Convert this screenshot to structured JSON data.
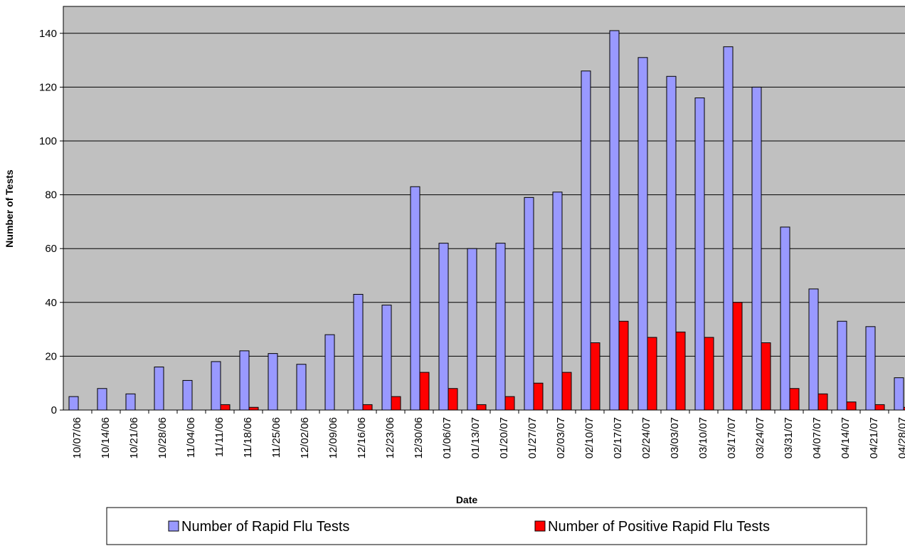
{
  "chart_data": {
    "type": "bar",
    "categories": [
      "10/07/06",
      "10/14/06",
      "10/21/06",
      "10/28/06",
      "11/04/06",
      "11/11/06",
      "11/18/06",
      "11/25/06",
      "12/02/06",
      "12/09/06",
      "12/16/06",
      "12/23/06",
      "12/30/06",
      "01/06/07",
      "01/13/07",
      "01/20/07",
      "01/27/07",
      "02/03/07",
      "02/10/07",
      "02/17/07",
      "02/24/07",
      "03/03/07",
      "03/10/07",
      "03/17/07",
      "03/24/07",
      "03/31/07",
      "04/07/07",
      "04/14/07",
      "04/21/07",
      "04/28/07"
    ],
    "series": [
      {
        "name": "Number of Rapid Flu Tests",
        "color": "#9999ff",
        "values": [
          5,
          8,
          6,
          16,
          11,
          18,
          22,
          21,
          17,
          28,
          43,
          39,
          83,
          62,
          60,
          62,
          79,
          81,
          126,
          141,
          131,
          124,
          116,
          135,
          120,
          68,
          45,
          33,
          31,
          12
        ]
      },
      {
        "name": "Number of Positive Rapid Flu Tests",
        "color": "#ff0000",
        "values": [
          0,
          0,
          0,
          0,
          0,
          2,
          1,
          0,
          0,
          0,
          2,
          5,
          14,
          8,
          2,
          5,
          10,
          14,
          25,
          33,
          27,
          29,
          27,
          40,
          25,
          8,
          6,
          3,
          2,
          1
        ]
      }
    ],
    "x_label": "Date",
    "y_label": "Number of Tests",
    "ylim": [
      0,
      150
    ],
    "yticks": [
      0,
      20,
      40,
      60,
      80,
      100,
      120,
      140
    ],
    "grid": true,
    "legend": "bottom"
  }
}
